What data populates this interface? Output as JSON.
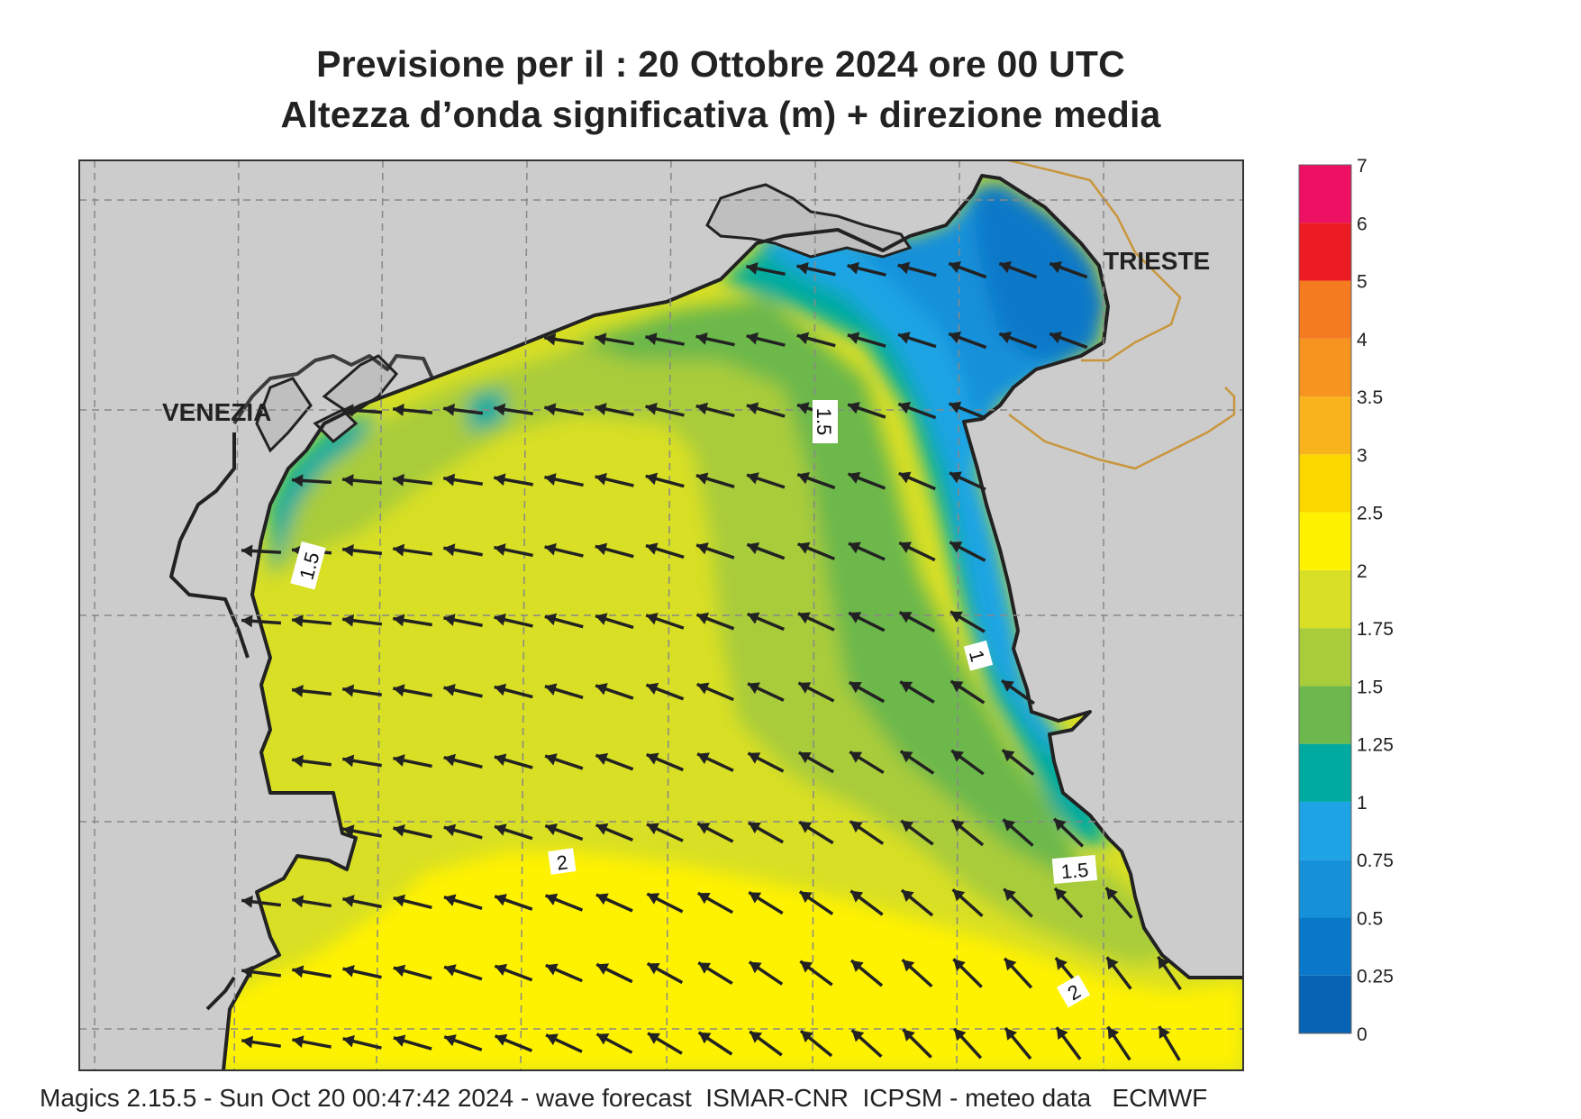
{
  "title": {
    "line1": "Previsione per il  :  20  Ottobre  2024   ore 00 UTC",
    "line2": "Altezza d’onda significativa (m) + direzione media"
  },
  "footer": "Magics 2.15.5 - Sun Oct 20 00:47:42 2024 - wave forecast  ISMAR-CNR  ICPSM - meteo data   ECMWF",
  "map": {
    "cities": [
      {
        "name": "VENEZIA"
      },
      {
        "name": "TRIESTE"
      }
    ],
    "contour_labels": [
      "1.5",
      "1.5",
      "1",
      "1.5",
      "2",
      "2"
    ]
  },
  "colorbar": {
    "levels": [
      "0",
      "0.25",
      "0.5",
      "0.75",
      "1",
      "1.25",
      "1.5",
      "1.75",
      "2",
      "2.5",
      "3",
      "3.5",
      "4",
      "5",
      "6",
      "7"
    ],
    "colors": [
      "#0763b3",
      "#0a78c8",
      "#1590d9",
      "#1ea4e4",
      "#00aaa0",
      "#6cb84c",
      "#a9cc3a",
      "#d8df24",
      "#fff200",
      "#fdd700",
      "#f9b31c",
      "#f79420",
      "#f47b20",
      "#ec1c24",
      "#ee1062"
    ]
  },
  "colors": {
    "land": "#cccccc",
    "coast": "#222222",
    "border": "#c8963c",
    "arrow": "#222222"
  }
}
